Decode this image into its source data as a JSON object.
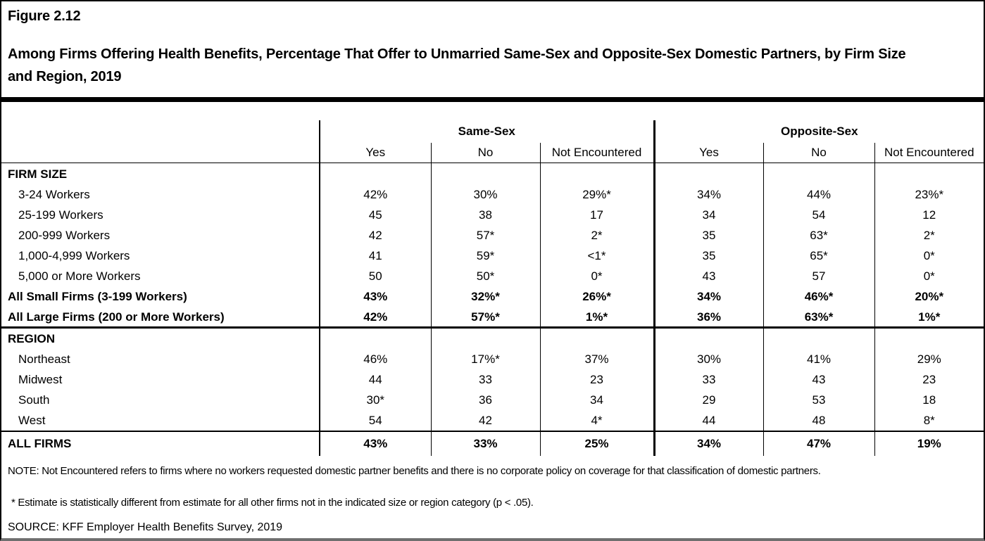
{
  "chart_data": {
    "type": "table",
    "figure_label": "Figure 2.12",
    "title": "Among Firms Offering Health Benefits, Percentage That Offer to Unmarried Same-Sex and Opposite-Sex Domestic Partners, by Firm Size and Region, 2019",
    "column_groups": [
      "Same-Sex",
      "Opposite-Sex"
    ],
    "columns": [
      "Yes",
      "No",
      "Not Encountered",
      "Yes",
      "No",
      "Not Encountered"
    ],
    "rows": [
      {
        "label": "FIRM SIZE",
        "style": "section",
        "values": [
          "",
          "",
          "",
          "",
          "",
          ""
        ]
      },
      {
        "label": "3-24 Workers",
        "style": "item",
        "values": [
          "42%",
          "30%",
          "29%*",
          "34%",
          "44%",
          "23%*"
        ]
      },
      {
        "label": "25-199 Workers",
        "style": "item",
        "values": [
          "45",
          "38",
          "17",
          "34",
          "54",
          "12"
        ]
      },
      {
        "label": "200-999 Workers",
        "style": "item",
        "values": [
          "42",
          "57*",
          "2*",
          "35",
          "63*",
          "2*"
        ]
      },
      {
        "label": "1,000-4,999 Workers",
        "style": "item",
        "values": [
          "41",
          "59*",
          "<1*",
          "35",
          "65*",
          "0*"
        ]
      },
      {
        "label": "5,000 or More Workers",
        "style": "item",
        "values": [
          "50",
          "50*",
          "0*",
          "43",
          "57",
          "0*"
        ]
      },
      {
        "label": "All Small Firms (3-199 Workers)",
        "style": "total",
        "values": [
          "43%",
          "32%*",
          "26%*",
          "34%",
          "46%*",
          "20%*"
        ]
      },
      {
        "label": "All Large Firms (200 or More Workers)",
        "style": "total",
        "section_end": true,
        "values": [
          "42%",
          "57%*",
          "1%*",
          "36%",
          "63%*",
          "1%*"
        ]
      },
      {
        "label": "REGION",
        "style": "section",
        "values": [
          "",
          "",
          "",
          "",
          "",
          ""
        ]
      },
      {
        "label": "Northeast",
        "style": "item",
        "values": [
          "46%",
          "17%*",
          "37%",
          "30%",
          "41%",
          "29%"
        ]
      },
      {
        "label": "Midwest",
        "style": "item",
        "values": [
          "44",
          "33",
          "23",
          "33",
          "43",
          "23"
        ]
      },
      {
        "label": "South",
        "style": "item",
        "values": [
          "30*",
          "36",
          "34",
          "29",
          "53",
          "18"
        ]
      },
      {
        "label": "West",
        "style": "item",
        "section_end": true,
        "values": [
          "54",
          "42",
          "4*",
          "44",
          "48",
          "8*"
        ]
      },
      {
        "label": "ALL FIRMS",
        "style": "grand-total",
        "values": [
          "43%",
          "33%",
          "25%",
          "34%",
          "47%",
          "19%"
        ]
      }
    ],
    "notes": {
      "note": "NOTE: Not Encountered refers to firms where no workers requested domestic partner benefits and there is no corporate policy on coverage for that classification of domestic partners.",
      "asterisk": "* Estimate is statistically different from estimate for all other firms not in the indicated size or region category (p < .05).",
      "source": "SOURCE: KFF Employer Health Benefits Survey, 2019"
    }
  }
}
